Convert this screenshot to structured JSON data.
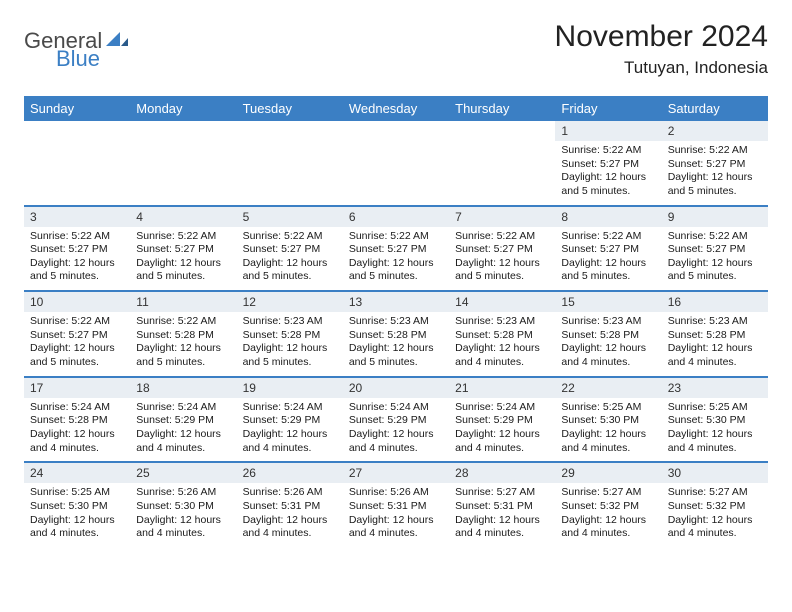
{
  "brand": {
    "text1": "General",
    "text2": "Blue"
  },
  "title": "November 2024",
  "location": "Tutuyan, Indonesia",
  "colors": {
    "header_bg": "#3b7fc4",
    "daynum_bg": "#e9eef3",
    "divider": "#3b7fc4",
    "text": "#1a1a1a",
    "white": "#ffffff"
  },
  "fonts": {
    "title_size": 30,
    "location_size": 17,
    "dayhead_size": 13,
    "daynum_size": 12,
    "info_size": 10.5
  },
  "day_headers": [
    "Sunday",
    "Monday",
    "Tuesday",
    "Wednesday",
    "Thursday",
    "Friday",
    "Saturday"
  ],
  "weeks": [
    [
      null,
      null,
      null,
      null,
      null,
      {
        "n": "1",
        "sr": "Sunrise: 5:22 AM",
        "ss": "Sunset: 5:27 PM",
        "dl": "Daylight: 12 hours and 5 minutes."
      },
      {
        "n": "2",
        "sr": "Sunrise: 5:22 AM",
        "ss": "Sunset: 5:27 PM",
        "dl": "Daylight: 12 hours and 5 minutes."
      }
    ],
    [
      {
        "n": "3",
        "sr": "Sunrise: 5:22 AM",
        "ss": "Sunset: 5:27 PM",
        "dl": "Daylight: 12 hours and 5 minutes."
      },
      {
        "n": "4",
        "sr": "Sunrise: 5:22 AM",
        "ss": "Sunset: 5:27 PM",
        "dl": "Daylight: 12 hours and 5 minutes."
      },
      {
        "n": "5",
        "sr": "Sunrise: 5:22 AM",
        "ss": "Sunset: 5:27 PM",
        "dl": "Daylight: 12 hours and 5 minutes."
      },
      {
        "n": "6",
        "sr": "Sunrise: 5:22 AM",
        "ss": "Sunset: 5:27 PM",
        "dl": "Daylight: 12 hours and 5 minutes."
      },
      {
        "n": "7",
        "sr": "Sunrise: 5:22 AM",
        "ss": "Sunset: 5:27 PM",
        "dl": "Daylight: 12 hours and 5 minutes."
      },
      {
        "n": "8",
        "sr": "Sunrise: 5:22 AM",
        "ss": "Sunset: 5:27 PM",
        "dl": "Daylight: 12 hours and 5 minutes."
      },
      {
        "n": "9",
        "sr": "Sunrise: 5:22 AM",
        "ss": "Sunset: 5:27 PM",
        "dl": "Daylight: 12 hours and 5 minutes."
      }
    ],
    [
      {
        "n": "10",
        "sr": "Sunrise: 5:22 AM",
        "ss": "Sunset: 5:27 PM",
        "dl": "Daylight: 12 hours and 5 minutes."
      },
      {
        "n": "11",
        "sr": "Sunrise: 5:22 AM",
        "ss": "Sunset: 5:28 PM",
        "dl": "Daylight: 12 hours and 5 minutes."
      },
      {
        "n": "12",
        "sr": "Sunrise: 5:23 AM",
        "ss": "Sunset: 5:28 PM",
        "dl": "Daylight: 12 hours and 5 minutes."
      },
      {
        "n": "13",
        "sr": "Sunrise: 5:23 AM",
        "ss": "Sunset: 5:28 PM",
        "dl": "Daylight: 12 hours and 5 minutes."
      },
      {
        "n": "14",
        "sr": "Sunrise: 5:23 AM",
        "ss": "Sunset: 5:28 PM",
        "dl": "Daylight: 12 hours and 4 minutes."
      },
      {
        "n": "15",
        "sr": "Sunrise: 5:23 AM",
        "ss": "Sunset: 5:28 PM",
        "dl": "Daylight: 12 hours and 4 minutes."
      },
      {
        "n": "16",
        "sr": "Sunrise: 5:23 AM",
        "ss": "Sunset: 5:28 PM",
        "dl": "Daylight: 12 hours and 4 minutes."
      }
    ],
    [
      {
        "n": "17",
        "sr": "Sunrise: 5:24 AM",
        "ss": "Sunset: 5:28 PM",
        "dl": "Daylight: 12 hours and 4 minutes."
      },
      {
        "n": "18",
        "sr": "Sunrise: 5:24 AM",
        "ss": "Sunset: 5:29 PM",
        "dl": "Daylight: 12 hours and 4 minutes."
      },
      {
        "n": "19",
        "sr": "Sunrise: 5:24 AM",
        "ss": "Sunset: 5:29 PM",
        "dl": "Daylight: 12 hours and 4 minutes."
      },
      {
        "n": "20",
        "sr": "Sunrise: 5:24 AM",
        "ss": "Sunset: 5:29 PM",
        "dl": "Daylight: 12 hours and 4 minutes."
      },
      {
        "n": "21",
        "sr": "Sunrise: 5:24 AM",
        "ss": "Sunset: 5:29 PM",
        "dl": "Daylight: 12 hours and 4 minutes."
      },
      {
        "n": "22",
        "sr": "Sunrise: 5:25 AM",
        "ss": "Sunset: 5:30 PM",
        "dl": "Daylight: 12 hours and 4 minutes."
      },
      {
        "n": "23",
        "sr": "Sunrise: 5:25 AM",
        "ss": "Sunset: 5:30 PM",
        "dl": "Daylight: 12 hours and 4 minutes."
      }
    ],
    [
      {
        "n": "24",
        "sr": "Sunrise: 5:25 AM",
        "ss": "Sunset: 5:30 PM",
        "dl": "Daylight: 12 hours and 4 minutes."
      },
      {
        "n": "25",
        "sr": "Sunrise: 5:26 AM",
        "ss": "Sunset: 5:30 PM",
        "dl": "Daylight: 12 hours and 4 minutes."
      },
      {
        "n": "26",
        "sr": "Sunrise: 5:26 AM",
        "ss": "Sunset: 5:31 PM",
        "dl": "Daylight: 12 hours and 4 minutes."
      },
      {
        "n": "27",
        "sr": "Sunrise: 5:26 AM",
        "ss": "Sunset: 5:31 PM",
        "dl": "Daylight: 12 hours and 4 minutes."
      },
      {
        "n": "28",
        "sr": "Sunrise: 5:27 AM",
        "ss": "Sunset: 5:31 PM",
        "dl": "Daylight: 12 hours and 4 minutes."
      },
      {
        "n": "29",
        "sr": "Sunrise: 5:27 AM",
        "ss": "Sunset: 5:32 PM",
        "dl": "Daylight: 12 hours and 4 minutes."
      },
      {
        "n": "30",
        "sr": "Sunrise: 5:27 AM",
        "ss": "Sunset: 5:32 PM",
        "dl": "Daylight: 12 hours and 4 minutes."
      }
    ]
  ]
}
